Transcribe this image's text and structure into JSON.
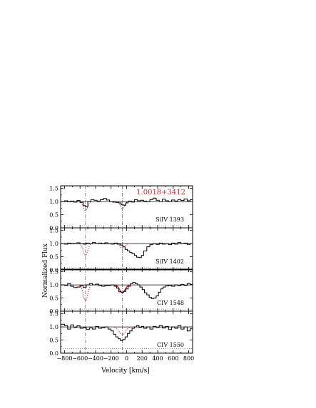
{
  "figure": {
    "object_label": "1.0018+3412",
    "xlabel": "Velocity [km/s]",
    "ylabel": "Normalized Flux",
    "x_tick_labels": [
      "−800",
      "−600",
      "−400",
      "−200",
      "0",
      "200",
      "400",
      "600",
      "800"
    ],
    "y_tick_labels": [
      "0.0",
      "0.5",
      "1.0",
      "1.5"
    ],
    "colors": {
      "data": "#000000",
      "continuum": "#000000",
      "model": "#d62728",
      "component_line": "#777777",
      "error": "#777777"
    }
  },
  "chart_data": [
    {
      "type": "line",
      "panel": 0,
      "label": "SiIV 1393",
      "xlim": [
        -850,
        850
      ],
      "ylim": [
        0,
        1.6
      ],
      "xticks": [
        -800,
        -600,
        -400,
        -200,
        0,
        200,
        400,
        600,
        800
      ],
      "yticks": [
        0,
        0.5,
        1.0,
        1.5
      ],
      "components_velocity": [
        -530,
        -55
      ],
      "continuum": 1.0,
      "flux_steps": [
        [
          -850,
          1.0
        ],
        [
          -800,
          1.03
        ],
        [
          -760,
          0.99
        ],
        [
          -720,
          1.02
        ],
        [
          -680,
          0.98
        ],
        [
          -640,
          1.04
        ],
        [
          -600,
          0.97
        ],
        [
          -560,
          0.85
        ],
        [
          -530,
          0.8
        ],
        [
          -500,
          1.0
        ],
        [
          -460,
          1.08
        ],
        [
          -420,
          1.05
        ],
        [
          -380,
          1.02
        ],
        [
          -340,
          1.07
        ],
        [
          -300,
          1.12
        ],
        [
          -260,
          1.06
        ],
        [
          -220,
          1.0
        ],
        [
          -180,
          0.98
        ],
        [
          -140,
          0.97
        ],
        [
          -100,
          0.95
        ],
        [
          -70,
          0.88
        ],
        [
          -40,
          0.86
        ],
        [
          -10,
          0.95
        ],
        [
          20,
          1.02
        ],
        [
          60,
          0.98
        ],
        [
          100,
          1.07
        ],
        [
          140,
          1.03
        ],
        [
          180,
          1.05
        ],
        [
          220,
          1.02
        ],
        [
          260,
          1.0
        ],
        [
          300,
          1.08
        ],
        [
          340,
          1.13
        ],
        [
          380,
          1.05
        ],
        [
          420,
          1.0
        ],
        [
          460,
          1.09
        ],
        [
          500,
          1.03
        ],
        [
          540,
          1.0
        ],
        [
          580,
          1.06
        ],
        [
          620,
          1.02
        ],
        [
          660,
          1.08
        ],
        [
          700,
          1.04
        ],
        [
          740,
          1.1
        ],
        [
          780,
          1.03
        ],
        [
          820,
          1.07
        ]
      ],
      "model_components": [
        {
          "center": -530,
          "depth": 0.35,
          "sigma": 28
        },
        {
          "center": -55,
          "depth": 0.28,
          "sigma": 25
        }
      ],
      "error_level": 0.08
    },
    {
      "type": "line",
      "panel": 1,
      "label": "SiIV 1402",
      "xlim": [
        -850,
        850
      ],
      "ylim": [
        0,
        1.6
      ],
      "xticks": [
        -800,
        -600,
        -400,
        -200,
        0,
        200,
        400,
        600,
        800
      ],
      "yticks": [
        0,
        0.5,
        1.0,
        1.5
      ],
      "components_velocity": [
        -530,
        -55
      ],
      "continuum": 1.0,
      "flux_steps": [
        [
          -850,
          1.0
        ],
        [
          -800,
          0.98
        ],
        [
          -760,
          1.02
        ],
        [
          -720,
          0.99
        ],
        [
          -680,
          1.01
        ],
        [
          -640,
          1.03
        ],
        [
          -600,
          1.0
        ],
        [
          -560,
          0.98
        ],
        [
          -520,
          1.02
        ],
        [
          -480,
          1.0
        ],
        [
          -440,
          1.04
        ],
        [
          -400,
          1.0
        ],
        [
          -360,
          1.02
        ],
        [
          -320,
          0.99
        ],
        [
          -280,
          1.03
        ],
        [
          -240,
          1.0
        ],
        [
          -200,
          0.98
        ],
        [
          -160,
          1.02
        ],
        [
          -120,
          0.98
        ],
        [
          -80,
          0.94
        ],
        [
          -50,
          0.88
        ],
        [
          -20,
          0.78
        ],
        [
          10,
          0.72
        ],
        [
          40,
          0.66
        ],
        [
          70,
          0.62
        ],
        [
          100,
          0.55
        ],
        [
          130,
          0.48
        ],
        [
          160,
          0.47
        ],
        [
          190,
          0.55
        ],
        [
          220,
          0.72
        ],
        [
          260,
          0.88
        ],
        [
          300,
          0.96
        ],
        [
          340,
          1.0
        ],
        [
          380,
          0.97
        ],
        [
          420,
          1.02
        ],
        [
          460,
          0.98
        ],
        [
          500,
          1.0
        ],
        [
          540,
          0.96
        ],
        [
          580,
          1.02
        ],
        [
          620,
          0.98
        ],
        [
          660,
          1.04
        ],
        [
          700,
          1.0
        ],
        [
          740,
          1.02
        ],
        [
          780,
          0.97
        ],
        [
          820,
          1.0
        ]
      ],
      "model_components": [
        {
          "center": -530,
          "depth": 0.45,
          "sigma": 28
        },
        {
          "center": -55,
          "depth": 0.18,
          "sigma": 30
        }
      ],
      "error_level": 0.08
    },
    {
      "type": "line",
      "panel": 2,
      "label": "CIV 1548",
      "xlim": [
        -850,
        850
      ],
      "ylim": [
        0,
        1.6
      ],
      "xticks": [
        -800,
        -600,
        -400,
        -200,
        0,
        200,
        400,
        600,
        800
      ],
      "yticks": [
        0,
        0.5,
        1.0,
        1.5
      ],
      "components_velocity": [
        -530,
        -55
      ],
      "continuum": 1.0,
      "flux_steps": [
        [
          -850,
          1.0
        ],
        [
          -800,
          0.98
        ],
        [
          -760,
          1.05
        ],
        [
          -720,
          0.95
        ],
        [
          -680,
          0.9
        ],
        [
          -640,
          0.92
        ],
        [
          -600,
          0.97
        ],
        [
          -560,
          0.9
        ],
        [
          -520,
          1.0
        ],
        [
          -480,
          1.05
        ],
        [
          -440,
          1.0
        ],
        [
          -400,
          1.03
        ],
        [
          -360,
          0.98
        ],
        [
          -320,
          0.95
        ],
        [
          -280,
          0.97
        ],
        [
          -240,
          0.98
        ],
        [
          -200,
          1.0
        ],
        [
          -160,
          0.95
        ],
        [
          -130,
          0.88
        ],
        [
          -100,
          0.74
        ],
        [
          -70,
          0.72
        ],
        [
          -40,
          0.75
        ],
        [
          -10,
          0.85
        ],
        [
          20,
          0.95
        ],
        [
          50,
          1.05
        ],
        [
          80,
          1.1
        ],
        [
          110,
          1.05
        ],
        [
          140,
          1.0
        ],
        [
          170,
          0.92
        ],
        [
          200,
          0.82
        ],
        [
          230,
          0.7
        ],
        [
          260,
          0.62
        ],
        [
          290,
          0.52
        ],
        [
          320,
          0.48
        ],
        [
          350,
          0.5
        ],
        [
          380,
          0.58
        ],
        [
          410,
          0.72
        ],
        [
          440,
          0.85
        ],
        [
          470,
          0.92
        ],
        [
          500,
          0.96
        ],
        [
          540,
          0.98
        ],
        [
          580,
          0.95
        ],
        [
          620,
          1.0
        ],
        [
          660,
          0.97
        ],
        [
          700,
          1.02
        ],
        [
          740,
          0.98
        ],
        [
          780,
          1.05
        ],
        [
          820,
          1.02
        ]
      ],
      "model_components": [
        {
          "center": -530,
          "depth": 0.62,
          "sigma": 28
        },
        {
          "center": -55,
          "depth": 0.3,
          "sigma": 35
        }
      ],
      "model_segment": [
        -150,
        40
      ],
      "error_level": 0.08
    },
    {
      "type": "line",
      "panel": 3,
      "label": "CIV 1550",
      "xlim": [
        -850,
        850
      ],
      "ylim": [
        0,
        1.6
      ],
      "xticks": [
        -800,
        -600,
        -400,
        -200,
        0,
        200,
        400,
        600,
        800
      ],
      "yticks": [
        0,
        0.5,
        1.0,
        1.5
      ],
      "components_velocity": [
        -530,
        -55
      ],
      "continuum": 1.0,
      "flux_steps": [
        [
          -850,
          1.1
        ],
        [
          -800,
          1.05
        ],
        [
          -760,
          0.92
        ],
        [
          -720,
          1.08
        ],
        [
          -680,
          0.98
        ],
        [
          -640,
          1.04
        ],
        [
          -600,
          0.95
        ],
        [
          -560,
          0.98
        ],
        [
          -520,
          0.9
        ],
        [
          -480,
          0.96
        ],
        [
          -440,
          0.92
        ],
        [
          -400,
          1.02
        ],
        [
          -360,
          0.95
        ],
        [
          -320,
          0.97
        ],
        [
          -280,
          1.0
        ],
        [
          -240,
          0.92
        ],
        [
          -200,
          0.85
        ],
        [
          -170,
          0.72
        ],
        [
          -140,
          0.62
        ],
        [
          -110,
          0.55
        ],
        [
          -80,
          0.48
        ],
        [
          -50,
          0.52
        ],
        [
          -20,
          0.62
        ],
        [
          10,
          0.75
        ],
        [
          40,
          0.85
        ],
        [
          70,
          0.95
        ],
        [
          100,
          1.0
        ],
        [
          130,
          1.05
        ],
        [
          160,
          0.98
        ],
        [
          190,
          1.02
        ],
        [
          220,
          0.95
        ],
        [
          260,
          1.0
        ],
        [
          300,
          0.92
        ],
        [
          340,
          1.02
        ],
        [
          380,
          0.98
        ],
        [
          420,
          1.05
        ],
        [
          460,
          0.96
        ],
        [
          500,
          1.02
        ],
        [
          540,
          0.9
        ],
        [
          580,
          1.0
        ],
        [
          620,
          0.95
        ],
        [
          660,
          1.05
        ],
        [
          700,
          0.92
        ],
        [
          740,
          1.0
        ],
        [
          780,
          0.85
        ],
        [
          820,
          0.93
        ]
      ],
      "model_components": [
        {
          "center": -530,
          "depth": 0.0,
          "sigma": 28
        },
        {
          "center": -55,
          "depth": 0.3,
          "sigma": 40
        }
      ],
      "error_level": 0.18
    }
  ]
}
